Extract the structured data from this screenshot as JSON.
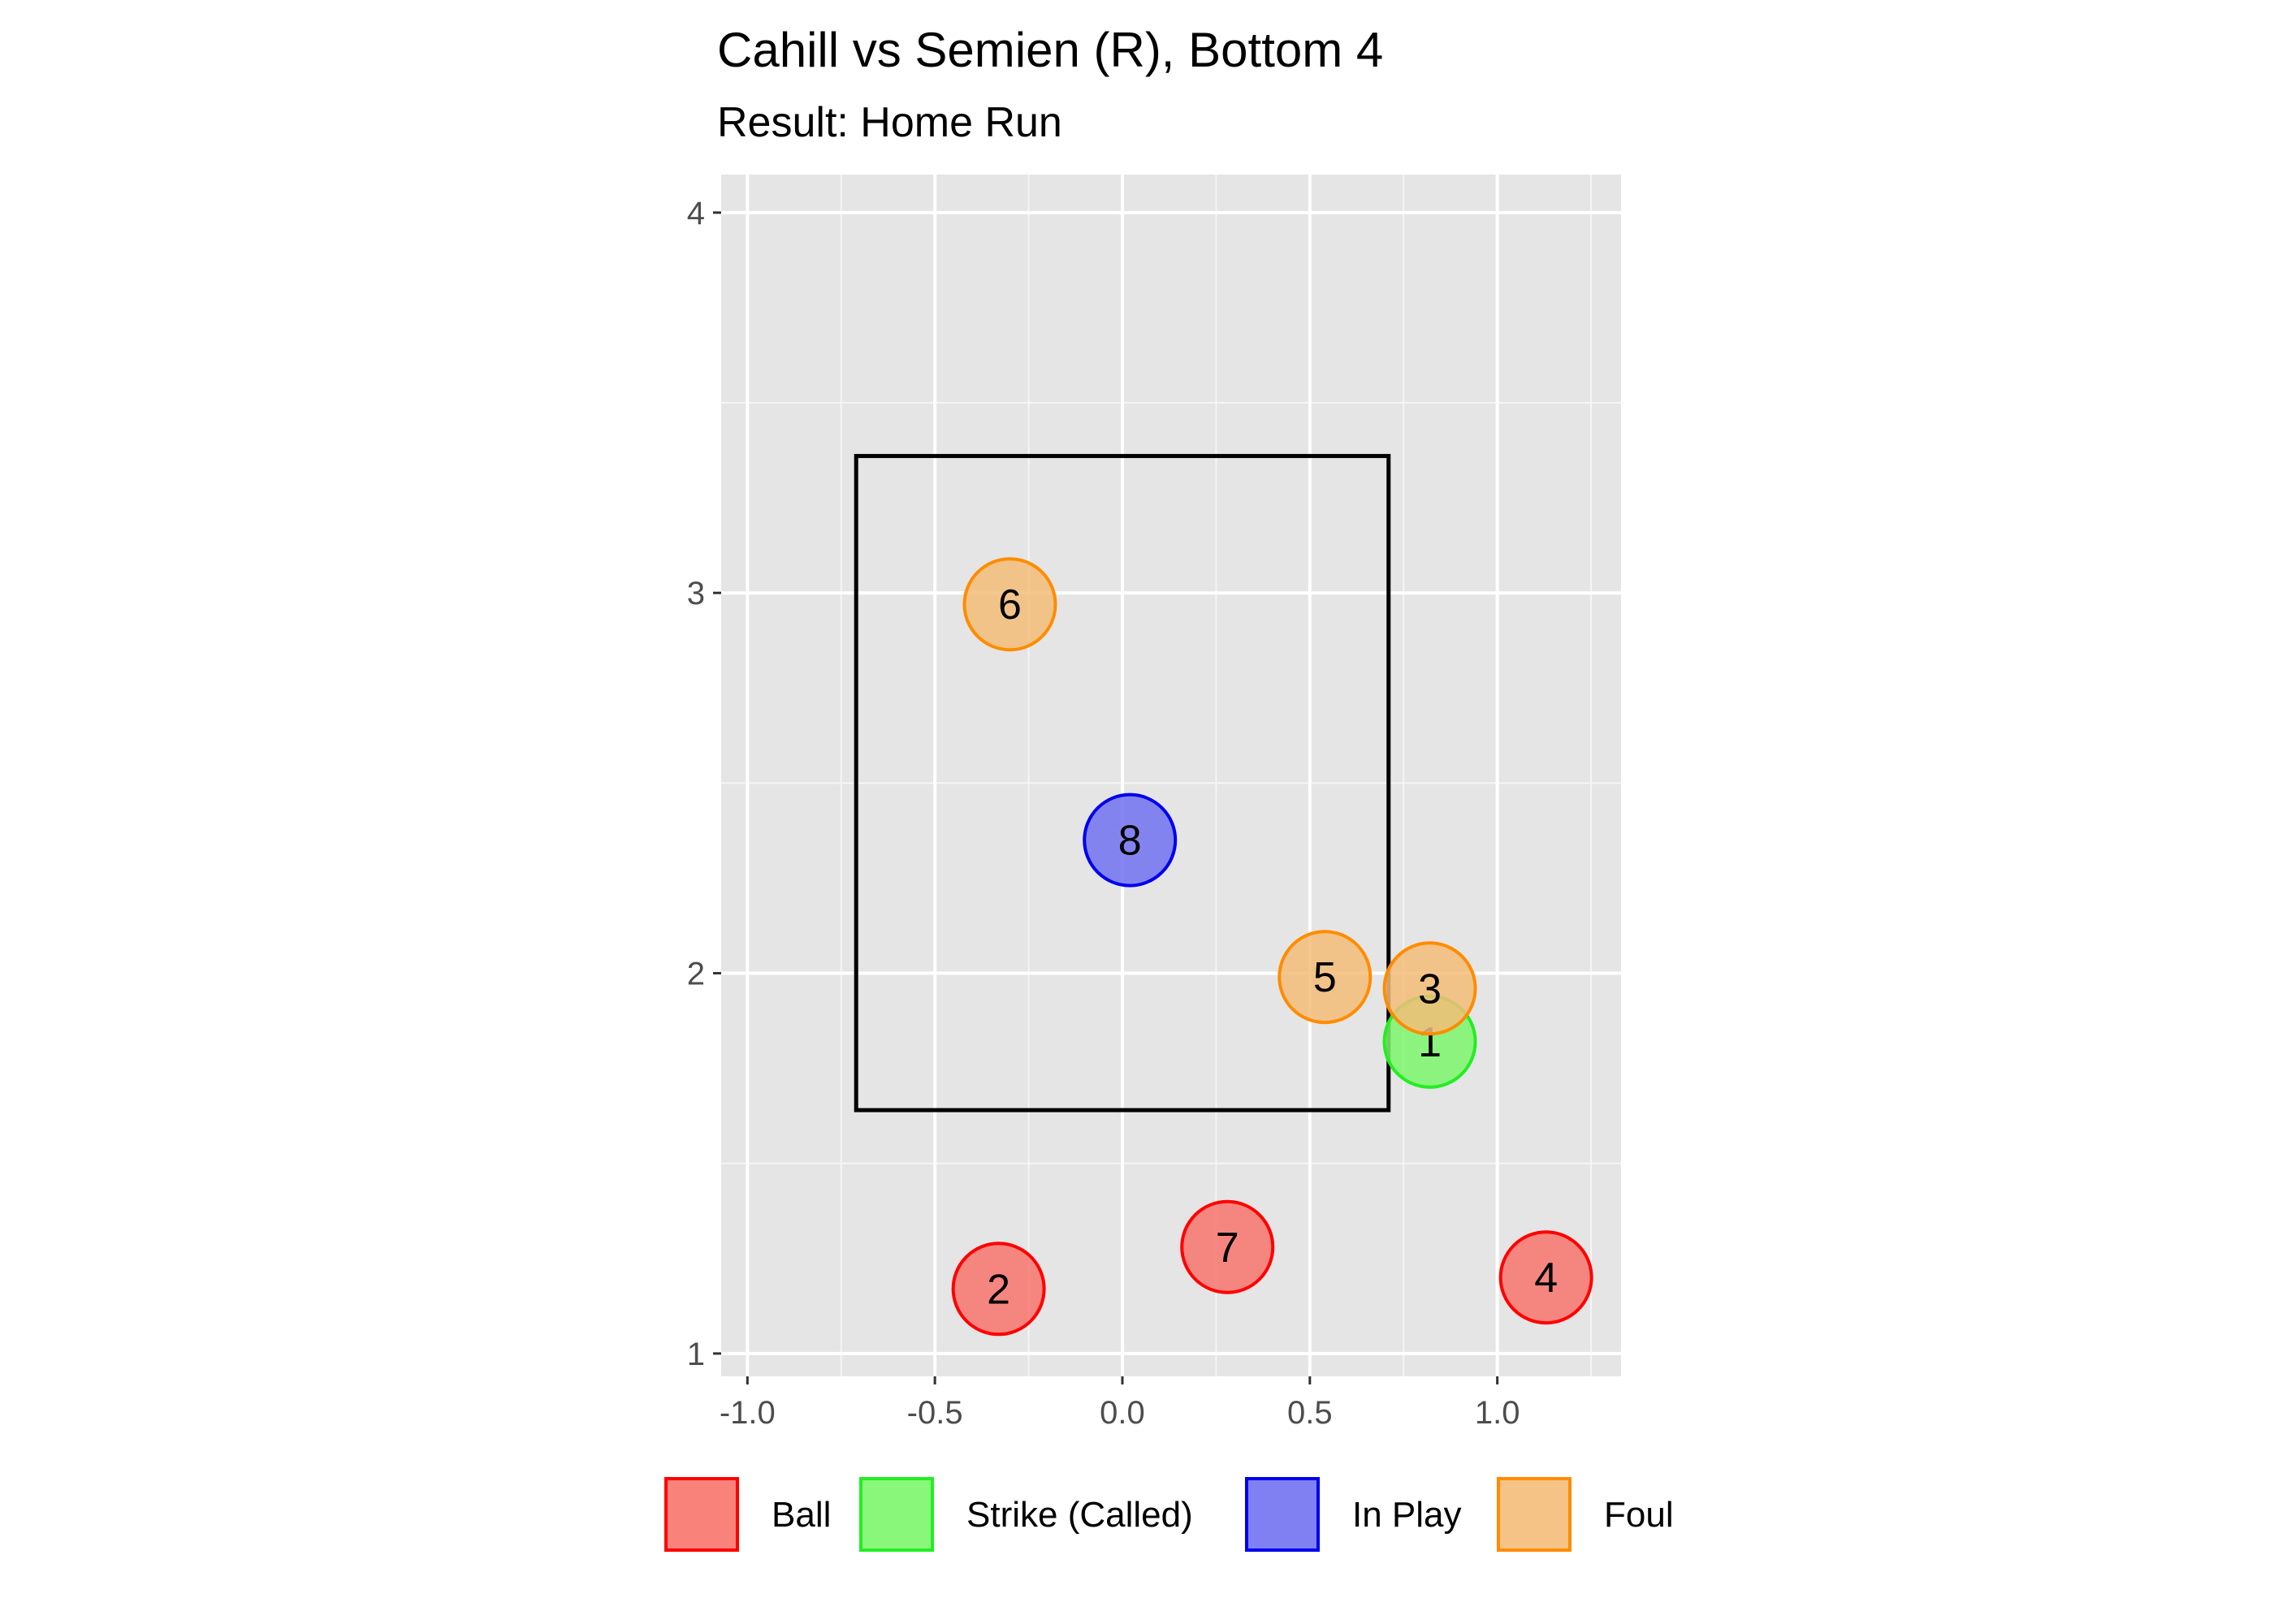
{
  "chart_data": {
    "type": "scatter",
    "title": "Cahill vs Semien (R), Bottom 4",
    "subtitle": "Result: Home Run",
    "xlabel": "",
    "ylabel": "",
    "xlim": [
      -1.07,
      1.33
    ],
    "ylim": [
      0.94,
      4.1
    ],
    "x_ticks": [
      -1.0,
      -0.5,
      0.0,
      0.5,
      1.0
    ],
    "x_tick_labels": [
      "-1.0",
      "-0.5",
      "0.0",
      "0.5",
      "1.0"
    ],
    "y_ticks": [
      1,
      2,
      3,
      4
    ],
    "y_tick_labels": [
      "1",
      "2",
      "3",
      "4"
    ],
    "grid": true,
    "strike_zone": {
      "x": [
        -0.71,
        0.71
      ],
      "y": [
        1.64,
        3.36
      ]
    },
    "legend_position": "bottom",
    "categories": [
      {
        "name": "Ball",
        "fill": "#F8766D",
        "stroke": "#FF0000"
      },
      {
        "name": "Strike (Called)",
        "fill": "#7CF66C",
        "stroke": "#22EE22"
      },
      {
        "name": "In Play",
        "fill": "#7272F2",
        "stroke": "#0000EE"
      },
      {
        "name": "Foul",
        "fill": "#F3BD78",
        "stroke": "#FF8C00"
      }
    ],
    "points": [
      {
        "label": "1",
        "x": 0.82,
        "y": 1.82,
        "category": "Strike (Called)"
      },
      {
        "label": "2",
        "x": -0.33,
        "y": 1.17,
        "category": "Ball"
      },
      {
        "label": "3",
        "x": 0.82,
        "y": 1.96,
        "category": "Foul"
      },
      {
        "label": "4",
        "x": 1.13,
        "y": 1.2,
        "category": "Ball"
      },
      {
        "label": "5",
        "x": 0.54,
        "y": 1.99,
        "category": "Foul"
      },
      {
        "label": "6",
        "x": -0.3,
        "y": 2.97,
        "category": "Foul"
      },
      {
        "label": "7",
        "x": 0.28,
        "y": 1.28,
        "category": "Ball"
      },
      {
        "label": "8",
        "x": 0.02,
        "y": 2.35,
        "category": "In Play"
      }
    ]
  }
}
